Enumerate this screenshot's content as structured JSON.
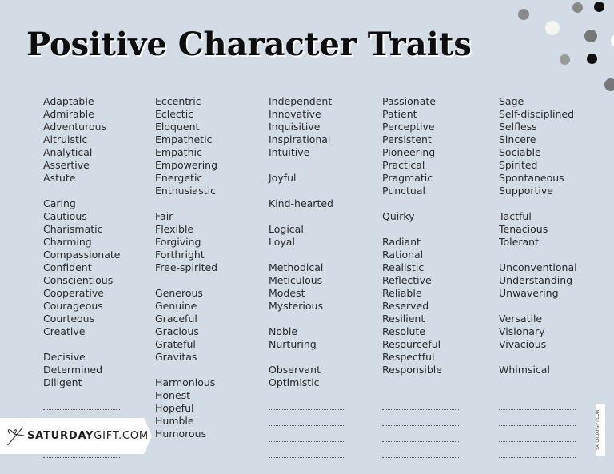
{
  "title": "Positive Character Traits",
  "columns": [
    [
      "Adaptable",
      "Admirable",
      "Adventurous",
      "Altruistic",
      "Analytical",
      "Assertive",
      "Astute",
      "",
      "Caring",
      "Cautious",
      "Charismatic",
      "Charming",
      "Compassionate",
      "Confident",
      "Conscientious",
      "Cooperative",
      "Courageous",
      "Courteous",
      "Creative",
      "",
      "Decisive",
      "Determined",
      "Diligent"
    ],
    [
      "Eccentric",
      "Eclectic",
      "Eloquent",
      "Empathetic",
      "Empathic",
      "Empowering",
      "Energetic",
      "Enthusiastic",
      "",
      "Fair",
      "Flexible",
      "Forgiving",
      "Forthright",
      "Free-spirited",
      "",
      "Generous",
      "Genuine",
      "Graceful",
      "Gracious",
      "Grateful",
      "Gravitas",
      "",
      "Harmonious",
      "Honest",
      "Hopeful",
      "Humble",
      "Humorous"
    ],
    [
      "Independent",
      "Innovative",
      "Inquisitive",
      "Inspirational",
      "Intuitive",
      "",
      "Joyful",
      "",
      "Kind-hearted",
      "",
      "Logical",
      "Loyal",
      "",
      "Methodical",
      "Meticulous",
      "Modest",
      "Mysterious",
      "",
      "Noble",
      "Nurturing",
      "",
      "Observant",
      "Optimistic"
    ],
    [
      "Passionate",
      "Patient",
      "Perceptive",
      "Persistent",
      "Pioneering",
      "Practical",
      "Pragmatic",
      "Punctual",
      "",
      "Quirky",
      "",
      "Radiant",
      "Rational",
      "Realistic",
      "Reflective",
      "Reliable",
      "Reserved",
      "Resilient",
      "Resolute",
      "Resourceful",
      "Respectful",
      "Responsible"
    ],
    [
      "Sage",
      "Self-disciplined",
      "Selfless",
      "Sincere",
      "Sociable",
      "Spirited",
      "Spontaneous",
      "Supportive",
      "",
      "Tactful",
      "Tenacious",
      "Tolerant",
      "",
      "Unconventional",
      "Understanding",
      "Unwavering",
      "",
      "Versatile",
      "Visionary",
      "Vivacious",
      "",
      "Whimsical"
    ]
  ],
  "brand": {
    "bold": "SATURDAY",
    "light": "GIFT.COM",
    "side": "SATURDAYGIFT.COM",
    "icon": "gift-bow-icon"
  },
  "colors": {
    "background": "#d3dce4",
    "title": "#0d0d0d"
  }
}
